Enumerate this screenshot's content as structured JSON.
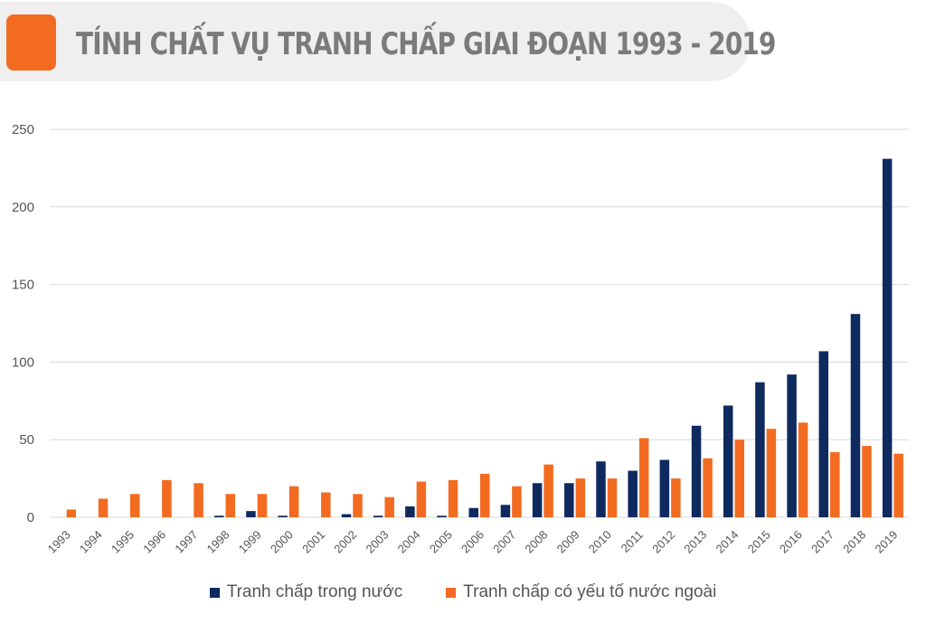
{
  "title": "TÍNH CHẤT VỤ TRANH CHẤP GIAI ĐOẠN 1993 - 2019",
  "colors": {
    "accent": "#f26b21",
    "domestic": "#0e2a5e",
    "foreign": "#f26b21",
    "grid": "#d9d9d9"
  },
  "chart_data": {
    "type": "bar",
    "categories": [
      "1993",
      "1994",
      "1995",
      "1996",
      "1997",
      "1998",
      "1999",
      "2000",
      "2001",
      "2002",
      "2003",
      "2004",
      "2005",
      "2006",
      "2007",
      "2008",
      "2009",
      "2010",
      "2011",
      "2012",
      "2013",
      "2014",
      "2015",
      "2016",
      "2017",
      "2018",
      "2019"
    ],
    "series": [
      {
        "name": "Tranh chấp trong nước",
        "color": "#0e2a5e",
        "values": [
          0,
          0,
          0,
          0,
          0,
          1,
          4,
          1,
          0,
          2,
          1,
          7,
          1,
          6,
          8,
          22,
          22,
          36,
          30,
          37,
          59,
          72,
          87,
          92,
          107,
          131,
          231
        ]
      },
      {
        "name": "Tranh chấp có yếu tố nước ngoài",
        "color": "#f26b21",
        "values": [
          5,
          12,
          15,
          24,
          22,
          15,
          15,
          20,
          16,
          15,
          13,
          23,
          24,
          28,
          20,
          34,
          25,
          25,
          51,
          25,
          38,
          50,
          57,
          61,
          42,
          46,
          41
        ]
      }
    ],
    "y_ticks": [
      "0",
      "50",
      "100",
      "150",
      "200",
      "250"
    ],
    "ylim": [
      0,
      250
    ],
    "grid": true,
    "legend_position": "bottom"
  }
}
